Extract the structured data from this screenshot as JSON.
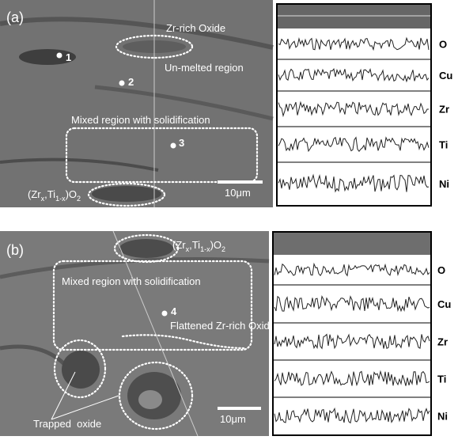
{
  "panels": [
    {
      "label": "(a)",
      "annotations": [
        "Zr-rich Oxide",
        "Un-melted region",
        "Mixed region with solidification"
      ],
      "points": [
        "1",
        "2",
        "3"
      ],
      "oxide_formula": [
        "(Zr",
        "x",
        ",Ti",
        "1-x",
        ")O",
        "2"
      ],
      "scale_bar": "10μm",
      "elements": [
        "O",
        "Cu",
        "Zr",
        "Ti",
        "Ni"
      ]
    },
    {
      "label": "(b)",
      "annotations": [
        "Mixed region with solidification",
        "Flattened Zr-rich Oxide",
        "Trapped  oxide"
      ],
      "points": [
        "4"
      ],
      "oxide_formula": [
        "(Zr",
        "x",
        ",Ti",
        "1-x",
        ")O",
        "2"
      ],
      "scale_bar": "10μm",
      "elements": [
        "O",
        "Cu",
        "Zr",
        "Ti",
        "Ni"
      ]
    }
  ]
}
